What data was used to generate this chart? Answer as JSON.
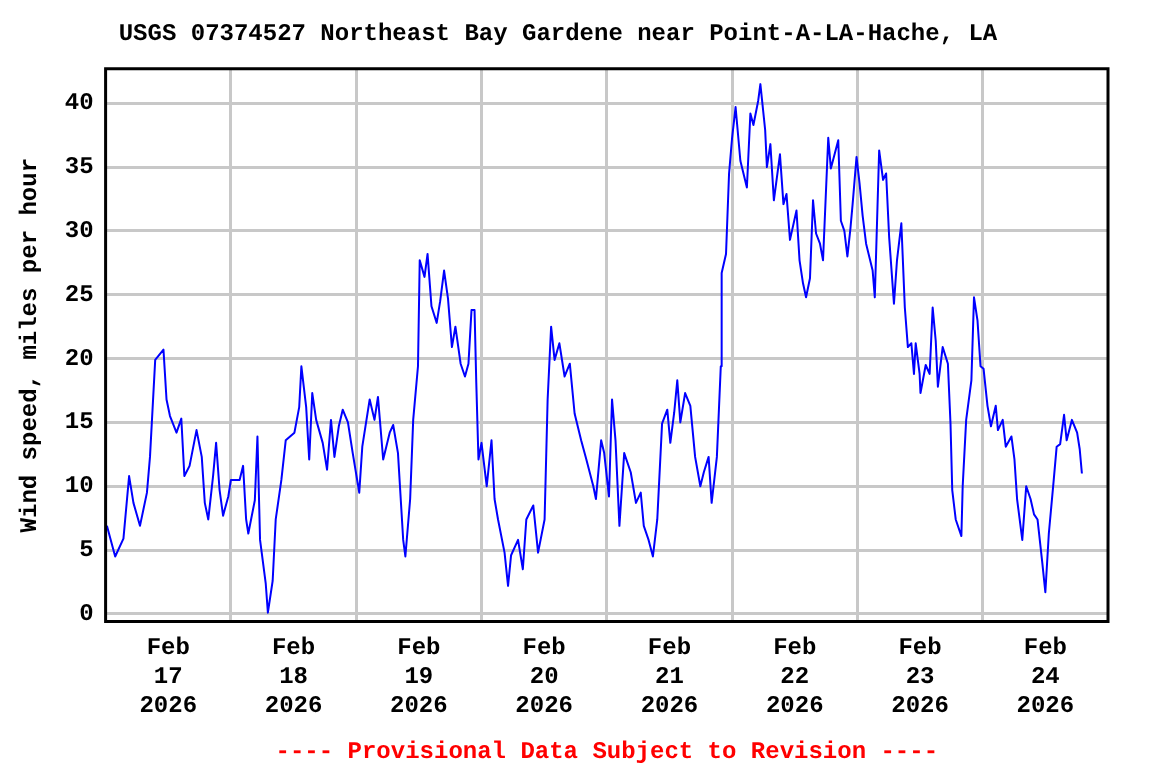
{
  "chart_data": {
    "type": "line",
    "title": "USGS 07374527 Northeast Bay Gardene near Point-A-LA-Hache, LA",
    "ylabel": "Wind speed, miles per hour",
    "annotations": [
      "---- Provisional Data Subject to Revision ----"
    ],
    "x": [
      "2026-02-17T00:15",
      "2026-02-17T01:50",
      "2026-02-17T03:25",
      "2026-02-17T04:30",
      "2026-02-17T05:20",
      "2026-02-17T06:35",
      "2026-02-17T07:55",
      "2026-02-17T08:30",
      "2026-02-17T09:30",
      "2026-02-17T11:05",
      "2026-02-17T11:40",
      "2026-02-17T12:20",
      "2026-02-17T13:35",
      "2026-02-17T14:30",
      "2026-02-17T15:05",
      "2026-02-17T16:05",
      "2026-02-17T17:25",
      "2026-02-17T18:25",
      "2026-02-17T19:00",
      "2026-02-17T19:40",
      "2026-02-17T20:35",
      "2026-02-17T21:10",
      "2026-02-17T21:50",
      "2026-02-17T22:30",
      "2026-02-17T23:30",
      "2026-02-18T00:00",
      "2026-02-18T01:40",
      "2026-02-18T02:20",
      "2026-02-18T02:55",
      "2026-02-18T03:20",
      "2026-02-18T04:35",
      "2026-02-18T05:05",
      "2026-02-18T05:35",
      "2026-02-18T06:40",
      "2026-02-18T07:05",
      "2026-02-18T08:00",
      "2026-02-18T08:35",
      "2026-02-18T09:40",
      "2026-02-18T10:30",
      "2026-02-18T12:10",
      "2026-02-18T13:05",
      "2026-02-18T13:30",
      "2026-02-18T14:25",
      "2026-02-18T15:00",
      "2026-02-18T15:35",
      "2026-02-18T16:20",
      "2026-02-18T17:35",
      "2026-02-18T18:25",
      "2026-02-18T19:10",
      "2026-02-18T19:50",
      "2026-02-18T20:40",
      "2026-02-18T21:25",
      "2026-02-18T22:25",
      "2026-02-18T23:20",
      "2026-02-19T00:35",
      "2026-02-19T01:10",
      "2026-02-19T02:35",
      "2026-02-19T03:30",
      "2026-02-19T04:10",
      "2026-02-19T05:10",
      "2026-02-19T06:25",
      "2026-02-19T07:05",
      "2026-02-19T08:00",
      "2026-02-19T09:00",
      "2026-02-19T09:25",
      "2026-02-19T10:20",
      "2026-02-19T10:55",
      "2026-02-19T11:50",
      "2026-02-19T12:10",
      "2026-02-19T13:05",
      "2026-02-19T13:40",
      "2026-02-19T14:25",
      "2026-02-19T15:25",
      "2026-02-19T16:05",
      "2026-02-19T16:50",
      "2026-02-19T17:35",
      "2026-02-19T18:20",
      "2026-02-19T19:00",
      "2026-02-19T20:00",
      "2026-02-19T20:50",
      "2026-02-19T21:30",
      "2026-02-19T22:05",
      "2026-02-19T22:40",
      "2026-02-19T23:00",
      "2026-02-19T23:25",
      "2026-02-20T00:00",
      "2026-02-20T01:00",
      "2026-02-20T01:55",
      "2026-02-20T02:30",
      "2026-02-20T03:10",
      "2026-02-20T04:25",
      "2026-02-20T05:05",
      "2026-02-20T05:40",
      "2026-02-20T07:00",
      "2026-02-20T07:55",
      "2026-02-20T08:35",
      "2026-02-20T09:55",
      "2026-02-20T10:50",
      "2026-02-20T12:05",
      "2026-02-20T12:40",
      "2026-02-20T13:20",
      "2026-02-20T14:00",
      "2026-02-20T14:55",
      "2026-02-20T15:55",
      "2026-02-20T16:55",
      "2026-02-20T17:50",
      "2026-02-20T19:05",
      "2026-02-20T20:05",
      "2026-02-20T21:25",
      "2026-02-20T21:55",
      "2026-02-20T22:55",
      "2026-02-20T23:30",
      "2026-02-21T00:25",
      "2026-02-21T01:00",
      "2026-02-21T01:40",
      "2026-02-21T02:25",
      "2026-02-21T03:20",
      "2026-02-21T04:35",
      "2026-02-21T05:35",
      "2026-02-21T06:30",
      "2026-02-21T07:05",
      "2026-02-21T08:00",
      "2026-02-21T08:50",
      "2026-02-21T09:40",
      "2026-02-21T10:35",
      "2026-02-21T11:35",
      "2026-02-21T12:10",
      "2026-02-21T12:55",
      "2026-02-21T13:30",
      "2026-02-21T14:05",
      "2026-02-21T15:00",
      "2026-02-21T16:00",
      "2026-02-21T16:55",
      "2026-02-21T17:55",
      "2026-02-21T18:35",
      "2026-02-21T19:30",
      "2026-02-21T20:05",
      "2026-02-21T21:05",
      "2026-02-21T21:50",
      "2026-02-21T22:00",
      "2026-02-21T22:50",
      "2026-02-21T23:25",
      "2026-02-22T00:00",
      "2026-02-22T00:40",
      "2026-02-22T01:35",
      "2026-02-22T02:50",
      "2026-02-22T03:30",
      "2026-02-22T04:05",
      "2026-02-22T05:00",
      "2026-02-22T05:25",
      "2026-02-22T06:20",
      "2026-02-22T06:40",
      "2026-02-22T07:20",
      "2026-02-22T08:00",
      "2026-02-22T09:10",
      "2026-02-22T09:50",
      "2026-02-22T10:25",
      "2026-02-22T11:05",
      "2026-02-22T12:20",
      "2026-02-22T12:55",
      "2026-02-22T13:35",
      "2026-02-22T14:10",
      "2026-02-22T14:55",
      "2026-02-22T15:30",
      "2026-02-22T16:05",
      "2026-02-22T16:50",
      "2026-02-22T17:25",
      "2026-02-22T18:25",
      "2026-02-22T18:55",
      "2026-02-22T20:20",
      "2026-02-22T20:50",
      "2026-02-22T21:30",
      "2026-02-22T22:05",
      "2026-02-22T22:40",
      "2026-02-22T23:05",
      "2026-02-22T23:50",
      "2026-02-23T00:25",
      "2026-02-23T01:00",
      "2026-02-23T01:40",
      "2026-02-23T02:55",
      "2026-02-23T03:20",
      "2026-02-23T04:10",
      "2026-02-23T04:55",
      "2026-02-23T05:30",
      "2026-02-23T06:05",
      "2026-02-23T07:00",
      "2026-02-23T07:35",
      "2026-02-23T08:25",
      "2026-02-23T09:05",
      "2026-02-23T09:40",
      "2026-02-23T10:20",
      "2026-02-23T10:50",
      "2026-02-23T11:10",
      "2026-02-23T11:55",
      "2026-02-23T12:05",
      "2026-02-23T13:05",
      "2026-02-23T13:50",
      "2026-02-23T14:25",
      "2026-02-23T15:00",
      "2026-02-23T15:25",
      "2026-02-23T16:20",
      "2026-02-23T17:20",
      "2026-02-23T17:50",
      "2026-02-23T18:10",
      "2026-02-23T18:50",
      "2026-02-23T19:55",
      "2026-02-23T20:10",
      "2026-02-23T20:50",
      "2026-02-23T21:50",
      "2026-02-23T22:20",
      "2026-02-23T23:00",
      "2026-02-23T23:35",
      "2026-02-24T00:10",
      "2026-02-24T00:55",
      "2026-02-24T01:35",
      "2026-02-24T02:30",
      "2026-02-24T02:55",
      "2026-02-24T03:50",
      "2026-02-24T04:25",
      "2026-02-24T05:30",
      "2026-02-24T06:05",
      "2026-02-24T06:35",
      "2026-02-24T07:35",
      "2026-02-24T08:20",
      "2026-02-24T09:10",
      "2026-02-24T09:50",
      "2026-02-24T10:30",
      "2026-02-24T11:25",
      "2026-02-24T12:00",
      "2026-02-24T12:40",
      "2026-02-24T13:35",
      "2026-02-24T14:10",
      "2026-02-24T14:50",
      "2026-02-24T15:35",
      "2026-02-24T16:05",
      "2026-02-24T17:05",
      "2026-02-24T18:05",
      "2026-02-24T18:35",
      "2026-02-24T19:00"
    ],
    "series": [
      {
        "color": "#0000ff",
        "values": [
          6.9,
          4.5,
          5.9,
          10.8,
          8.7,
          6.9,
          9.5,
          12.3,
          19.9,
          20.7,
          16.8,
          15.5,
          14.2,
          15.3,
          10.8,
          11.6,
          14.4,
          12.3,
          8.7,
          7.4,
          10.8,
          13.4,
          9.7,
          7.7,
          9.2,
          10.5,
          10.5,
          11.6,
          7.4,
          6.3,
          8.9,
          13.9,
          5.8,
          2.4,
          0.1,
          2.6,
          7.4,
          10.5,
          13.6,
          14.2,
          16.2,
          19.4,
          16.2,
          12.1,
          17.3,
          15.2,
          13.4,
          11.3,
          15.2,
          12.3,
          14.7,
          16.0,
          15.0,
          12.6,
          9.5,
          13.1,
          16.8,
          15.2,
          17.0,
          12.1,
          14.2,
          14.8,
          12.6,
          5.8,
          4.5,
          9.0,
          15.2,
          19.4,
          27.7,
          26.4,
          28.2,
          24.1,
          22.8,
          24.5,
          26.9,
          24.7,
          20.9,
          22.5,
          19.6,
          18.6,
          19.6,
          23.8,
          23.8,
          18.1,
          12.1,
          13.4,
          10.0,
          13.6,
          9.0,
          7.4,
          4.8,
          2.2,
          4.6,
          5.8,
          3.5,
          7.4,
          8.5,
          4.8,
          7.4,
          16.8,
          22.5,
          19.9,
          21.2,
          18.6,
          19.6,
          15.7,
          13.6,
          12.1,
          10.0,
          9.0,
          13.6,
          12.6,
          9.2,
          16.8,
          13.6,
          6.9,
          12.6,
          11.1,
          8.7,
          9.5,
          6.9,
          5.8,
          4.5,
          7.4,
          14.9,
          16.0,
          13.4,
          15.8,
          18.3,
          15.0,
          17.3,
          16.3,
          12.3,
          10.0,
          11.1,
          12.3,
          8.7,
          12.3,
          19.4,
          26.7,
          28.2,
          34.5,
          37.3,
          39.7,
          35.5,
          33.4,
          39.2,
          38.3,
          40.2,
          41.5,
          37.9,
          35.0,
          36.8,
          32.4,
          36.0,
          32.1,
          32.9,
          29.3,
          31.6,
          27.7,
          25.9,
          24.8,
          26.3,
          32.4,
          29.8,
          29.0,
          27.7,
          37.3,
          34.9,
          37.1,
          30.8,
          30.0,
          28.0,
          30.2,
          32.1,
          35.8,
          33.7,
          31.2,
          29.0,
          26.9,
          24.8,
          36.3,
          34.0,
          34.5,
          29.5,
          24.3,
          27.7,
          30.6,
          24.0,
          20.9,
          21.2,
          18.8,
          21.2,
          18.8,
          17.3,
          19.5,
          18.8,
          24.0,
          21.4,
          17.8,
          20.9,
          19.6,
          14.9,
          9.7,
          7.4,
          6.1,
          10.0,
          15.2,
          18.3,
          24.8,
          23.0,
          19.4,
          19.2,
          16.3,
          14.7,
          16.3,
          14.4,
          15.2,
          13.1,
          13.9,
          12.1,
          9.0,
          5.8,
          10.0,
          9.0,
          7.8,
          7.4,
          4.0,
          1.7,
          6.3,
          10.4,
          13.1,
          13.3,
          15.6,
          13.6,
          15.2,
          14.2,
          12.9,
          11.0
        ]
      }
    ],
    "xlim": [
      "2026-02-17T00:00",
      "2026-02-25T00:00"
    ],
    "xticks": [
      {
        "value": "2026-02-17T12:00",
        "label": "Feb 17 2026"
      },
      {
        "value": "2026-02-18T00:00",
        "label": null
      },
      {
        "value": "2026-02-18T12:00",
        "label": "Feb 18 2026"
      },
      {
        "value": "2026-02-19T00:00",
        "label": null
      },
      {
        "value": "2026-02-19T12:00",
        "label": "Feb 19 2026"
      },
      {
        "value": "2026-02-20T00:00",
        "label": null
      },
      {
        "value": "2026-02-20T12:00",
        "label": "Feb 20 2026"
      },
      {
        "value": "2026-02-21T00:00",
        "label": null
      },
      {
        "value": "2026-02-21T12:00",
        "label": "Feb 21 2026"
      },
      {
        "value": "2026-02-22T00:00",
        "label": null
      },
      {
        "value": "2026-02-22T12:00",
        "label": "Feb 22 2026"
      },
      {
        "value": "2026-02-23T00:00",
        "label": null
      },
      {
        "value": "2026-02-23T12:00",
        "label": "Feb 23 2026"
      },
      {
        "value": "2026-02-24T00:00",
        "label": null
      },
      {
        "value": "2026-02-24T12:00",
        "label": "Feb 24 2026"
      }
    ],
    "ylim": [
      -0.6,
      42.7
    ],
    "yticks": [
      0,
      5,
      10,
      15,
      20,
      25,
      30,
      35,
      40
    ],
    "grid": true,
    "legend": false,
    "marker": "none",
    "line_style": "solid"
  }
}
